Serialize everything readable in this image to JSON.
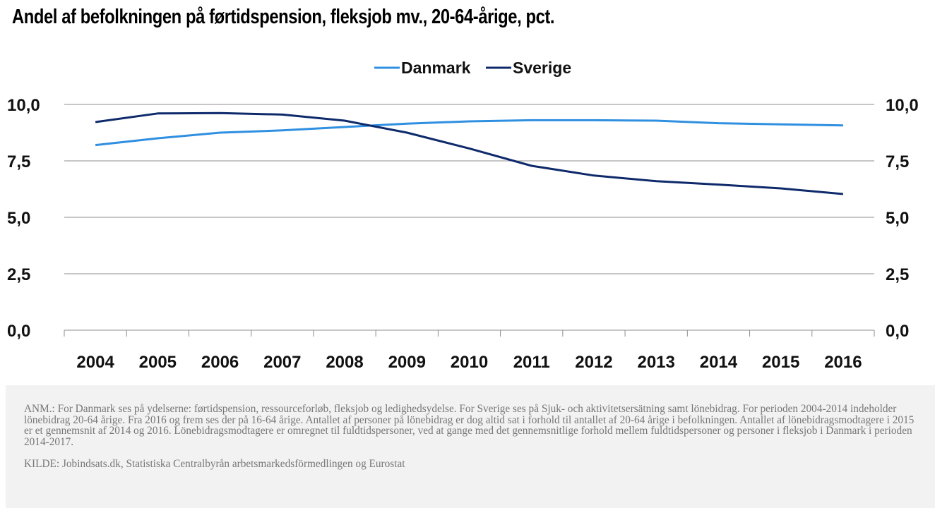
{
  "title": "Andel af befolkningen på førtidspension, fleksjob mv., 20-64-årige, pct.",
  "chart_data": {
    "type": "line",
    "title": "Andel af befolkningen på førtidspension, fleksjob mv., 20-64-årige, pct.",
    "x": [
      "2004",
      "2005",
      "2006",
      "2007",
      "2008",
      "2009",
      "2010",
      "2011",
      "2012",
      "2013",
      "2014",
      "2015",
      "2016"
    ],
    "series": [
      {
        "name": "Danmark",
        "color": "#2f8fe0",
        "values": [
          8.2,
          8.5,
          8.75,
          8.85,
          9.0,
          9.15,
          9.25,
          9.3,
          9.3,
          9.28,
          9.17,
          9.12,
          9.07
        ]
      },
      {
        "name": "Sverige",
        "color": "#0e2a6b",
        "values": [
          9.22,
          9.6,
          9.62,
          9.55,
          9.28,
          8.75,
          8.05,
          7.28,
          6.85,
          6.6,
          6.45,
          6.28,
          6.03
        ]
      }
    ],
    "ylim": [
      0,
      10
    ],
    "yticks": [
      "0,0",
      "2,5",
      "5,0",
      "7,5",
      "10,0"
    ],
    "ytick_values": [
      0,
      2.5,
      5,
      7.5,
      10
    ],
    "xlabel": "",
    "ylabel": "",
    "grid": true,
    "legend": "top-center",
    "dual_y_axis": true
  },
  "notes": {
    "anm": "ANM.: For Danmark ses på ydelserne: førtidspension, ressourceforløb, fleksjob og ledighedsydelse. For Sverige ses på Sjuk- och aktivitetsersätning samt lönebidrag. For perioden 2004-2014 indeholder lönebidrag 20-64 årige. Fra 2016 og frem ses der på 16-64 årige. Antallet af personer på lönebidrag er dog altid sat i forhold til antallet af 20-64 årige i befolkningen. Antallet af lönebidragsmodtagere i 2015 er et gennemsnit af 2014 og 2016. Lönebidragsmodtagere er omregnet til fuldtidspersoner, ved at gange med det gennemsnitlige forhold mellem fuldtidspersoner og personer i fleksjob i Danmark i perioden 2014-2017.",
    "kilde": "KILDE: Jobindsats.dk, Statistiska Centralbyrån arbetsmarkedsförmedlingen og Eurostat"
  }
}
